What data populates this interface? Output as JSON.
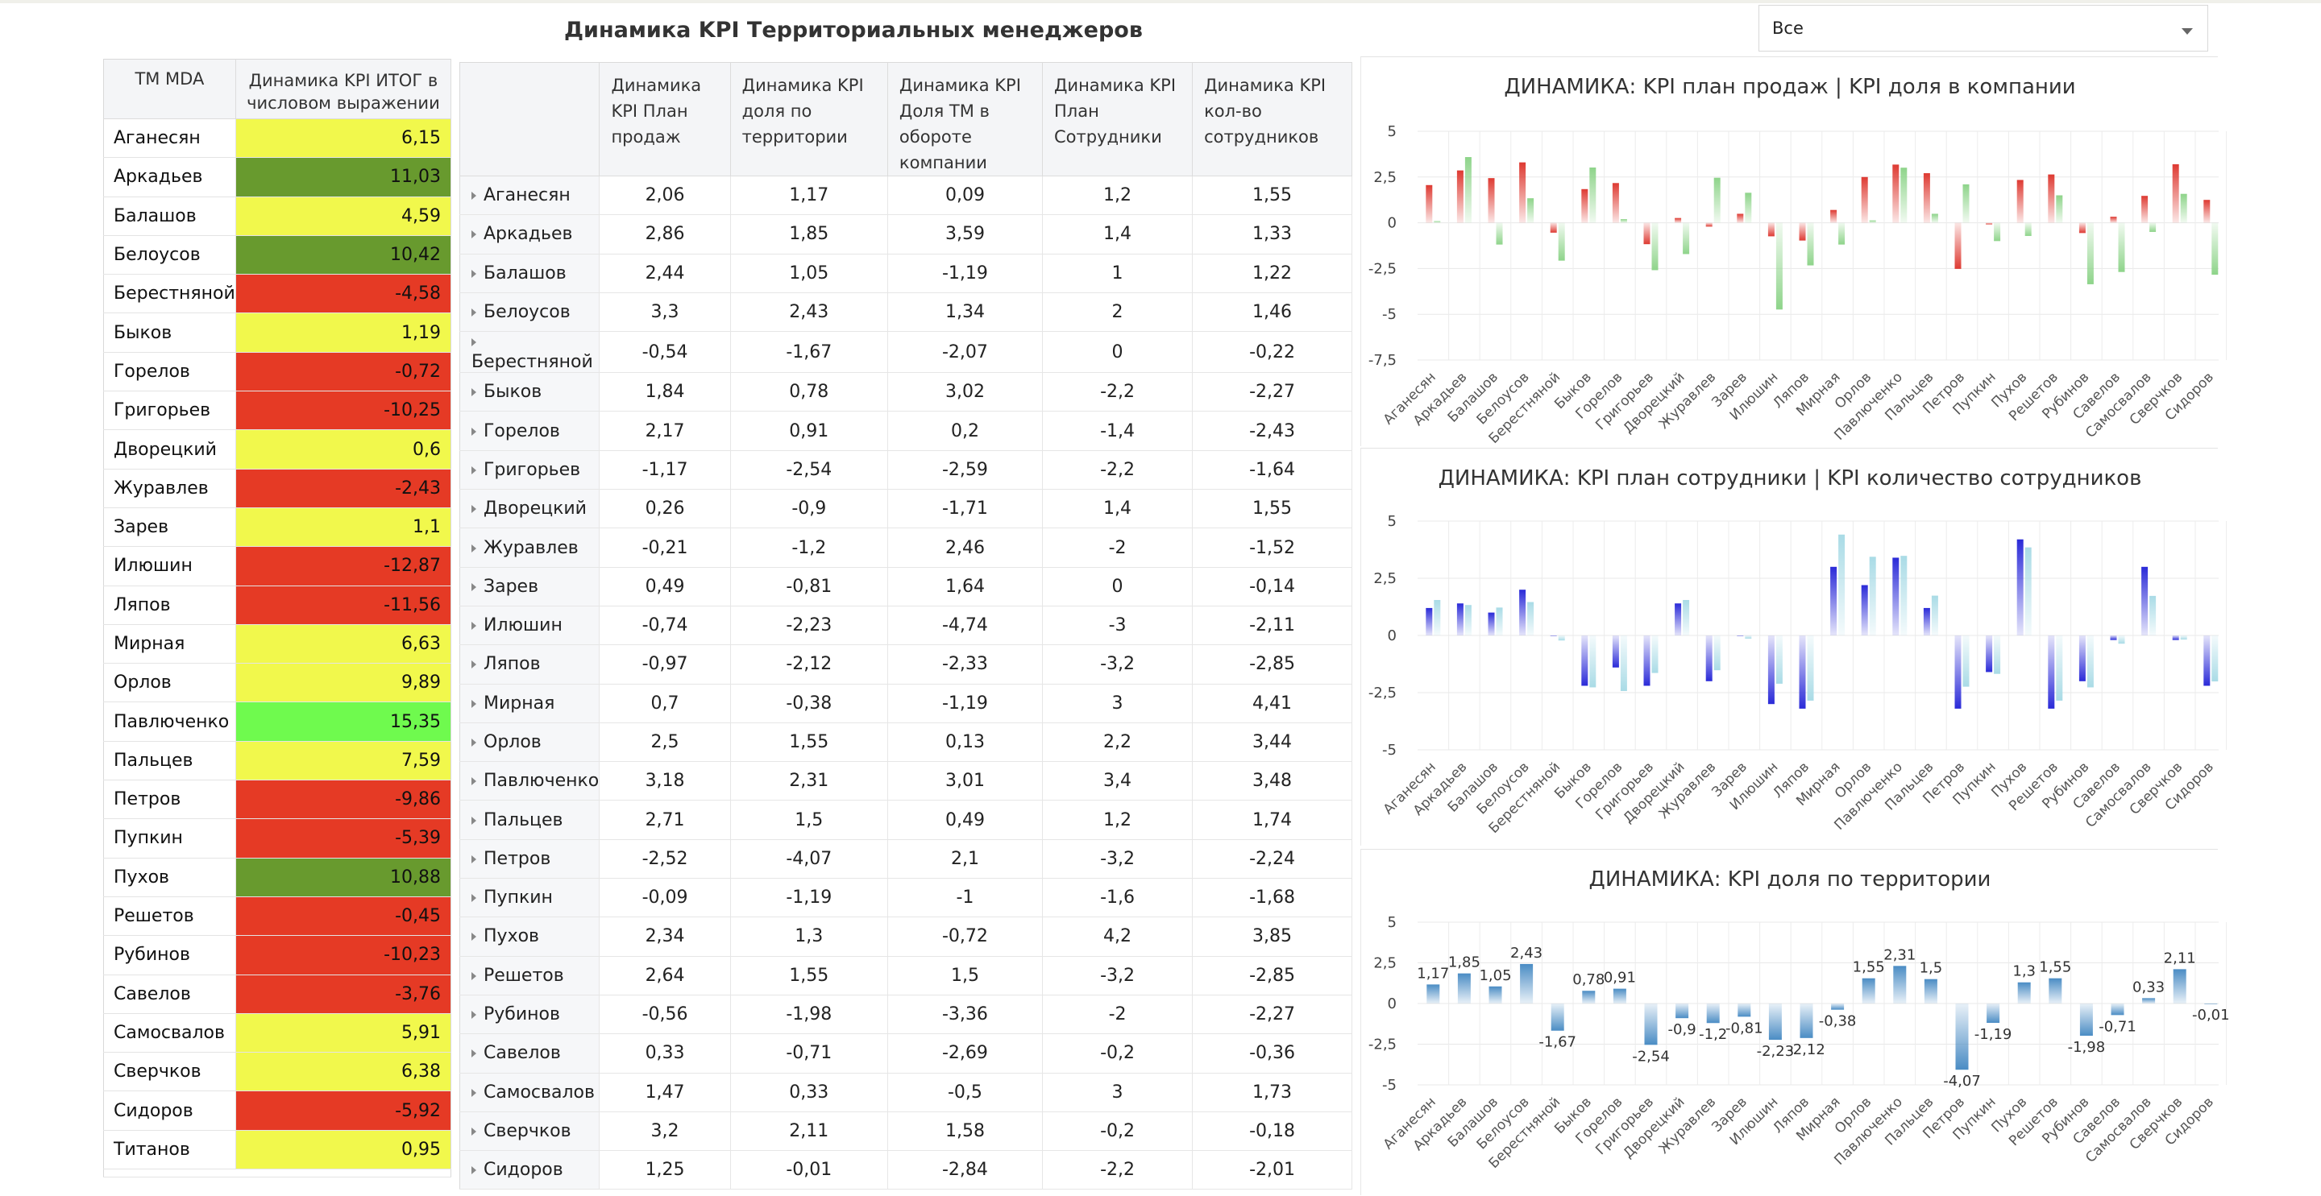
{
  "header": {
    "title": "Динамика KPI  Территориальных менеджеров"
  },
  "filter": {
    "value": "Все"
  },
  "colors": {
    "red": "#e53a25",
    "yellow": "#f1f84c",
    "dark_green": "#689a2e",
    "light_green": "#6ffa4e",
    "red_bar": "#de3a32",
    "green_bar": "#8ed48a",
    "blue_bar": "#2a2ad8",
    "light_blue_bar": "#a9dbe6",
    "steel_bar": "#4a8cc4"
  },
  "left_table": {
    "col_name": "ТМ MDA",
    "col_value": "Динамика KPI ИТОГ в числовом выражении",
    "rows": [
      {
        "name": "Аганесян",
        "value": "6,15",
        "color": "yellow"
      },
      {
        "name": "Аркадьев",
        "value": "11,03",
        "color": "dark_green"
      },
      {
        "name": "Балашов",
        "value": "4,59",
        "color": "yellow"
      },
      {
        "name": "Белоусов",
        "value": "10,42",
        "color": "dark_green"
      },
      {
        "name": "Берестняной",
        "value": "-4,58",
        "color": "red"
      },
      {
        "name": "Быков",
        "value": "1,19",
        "color": "yellow"
      },
      {
        "name": "Горелов",
        "value": "-0,72",
        "color": "red"
      },
      {
        "name": "Григорьев",
        "value": "-10,25",
        "color": "red"
      },
      {
        "name": "Дворецкий",
        "value": "0,6",
        "color": "yellow"
      },
      {
        "name": "Журавлев",
        "value": "-2,43",
        "color": "red"
      },
      {
        "name": "Зарев",
        "value": "1,1",
        "color": "yellow"
      },
      {
        "name": "Илюшин",
        "value": "-12,87",
        "color": "red"
      },
      {
        "name": "Ляпов",
        "value": "-11,56",
        "color": "red"
      },
      {
        "name": "Мирная",
        "value": "6,63",
        "color": "yellow"
      },
      {
        "name": "Орлов",
        "value": "9,89",
        "color": "yellow"
      },
      {
        "name": "Павлюченко",
        "value": "15,35",
        "color": "light_green"
      },
      {
        "name": "Пальцев",
        "value": "7,59",
        "color": "yellow"
      },
      {
        "name": "Петров",
        "value": "-9,86",
        "color": "red"
      },
      {
        "name": "Пупкин",
        "value": "-5,39",
        "color": "red"
      },
      {
        "name": "Пухов",
        "value": "10,88",
        "color": "dark_green"
      },
      {
        "name": "Решетов",
        "value": "-0,45",
        "color": "red"
      },
      {
        "name": "Рубинов",
        "value": "-10,23",
        "color": "red"
      },
      {
        "name": "Савелов",
        "value": "-3,76",
        "color": "red"
      },
      {
        "name": "Самосвалов",
        "value": "5,91",
        "color": "yellow"
      },
      {
        "name": "Сверчков",
        "value": "6,38",
        "color": "yellow"
      },
      {
        "name": "Сидоров",
        "value": "-5,92",
        "color": "red"
      },
      {
        "name": "Титанов",
        "value": "0,95",
        "color": "yellow"
      }
    ]
  },
  "mid_table": {
    "headers": [
      "Динамика KPI План продаж",
      "Динамика KPI доля по территории",
      "Динамика KPI Доля ТМ в обороте компании",
      "Динамика KPI План Сотрудники",
      "Динамика KPI кол-во сотрудников"
    ],
    "rows": [
      {
        "name": "Аганесян",
        "v": [
          "2,06",
          "1,17",
          "0,09",
          "1,2",
          "1,55"
        ]
      },
      {
        "name": "Аркадьев",
        "v": [
          "2,86",
          "1,85",
          "3,59",
          "1,4",
          "1,33"
        ]
      },
      {
        "name": "Балашов",
        "v": [
          "2,44",
          "1,05",
          "-1,19",
          "1",
          "1,22"
        ]
      },
      {
        "name": "Белоусов",
        "v": [
          "3,3",
          "2,43",
          "1,34",
          "2",
          "1,46"
        ]
      },
      {
        "name": "Берестняной",
        "v": [
          "-0,54",
          "-1,67",
          "-2,07",
          "0",
          "-0,22"
        ]
      },
      {
        "name": "Быков",
        "v": [
          "1,84",
          "0,78",
          "3,02",
          "-2,2",
          "-2,27"
        ]
      },
      {
        "name": "Горелов",
        "v": [
          "2,17",
          "0,91",
          "0,2",
          "-1,4",
          "-2,43"
        ]
      },
      {
        "name": "Григорьев",
        "v": [
          "-1,17",
          "-2,54",
          "-2,59",
          "-2,2",
          "-1,64"
        ]
      },
      {
        "name": "Дворецкий",
        "v": [
          "0,26",
          "-0,9",
          "-1,71",
          "1,4",
          "1,55"
        ]
      },
      {
        "name": "Журавлев",
        "v": [
          "-0,21",
          "-1,2",
          "2,46",
          "-2",
          "-1,52"
        ]
      },
      {
        "name": "Зарев",
        "v": [
          "0,49",
          "-0,81",
          "1,64",
          "0",
          "-0,14"
        ]
      },
      {
        "name": "Илюшин",
        "v": [
          "-0,74",
          "-2,23",
          "-4,74",
          "-3",
          "-2,11"
        ]
      },
      {
        "name": "Ляпов",
        "v": [
          "-0,97",
          "-2,12",
          "-2,33",
          "-3,2",
          "-2,85"
        ]
      },
      {
        "name": "Мирная",
        "v": [
          "0,7",
          "-0,38",
          "-1,19",
          "3",
          "4,41"
        ]
      },
      {
        "name": "Орлов",
        "v": [
          "2,5",
          "1,55",
          "0,13",
          "2,2",
          "3,44"
        ]
      },
      {
        "name": "Павлюченко",
        "v": [
          "3,18",
          "2,31",
          "3,01",
          "3,4",
          "3,48"
        ]
      },
      {
        "name": "Пальцев",
        "v": [
          "2,71",
          "1,5",
          "0,49",
          "1,2",
          "1,74"
        ]
      },
      {
        "name": "Петров",
        "v": [
          "-2,52",
          "-4,07",
          "2,1",
          "-3,2",
          "-2,24"
        ]
      },
      {
        "name": "Пупкин",
        "v": [
          "-0,09",
          "-1,19",
          "-1",
          "-1,6",
          "-1,68"
        ]
      },
      {
        "name": "Пухов",
        "v": [
          "2,34",
          "1,3",
          "-0,72",
          "4,2",
          "3,85"
        ]
      },
      {
        "name": "Решетов",
        "v": [
          "2,64",
          "1,55",
          "1,5",
          "-3,2",
          "-2,85"
        ]
      },
      {
        "name": "Рубинов",
        "v": [
          "-0,56",
          "-1,98",
          "-3,36",
          "-2",
          "-2,27"
        ]
      },
      {
        "name": "Савелов",
        "v": [
          "0,33",
          "-0,71",
          "-2,69",
          "-0,2",
          "-0,36"
        ]
      },
      {
        "name": "Самосвалов",
        "v": [
          "1,47",
          "0,33",
          "-0,5",
          "3",
          "1,73"
        ]
      },
      {
        "name": "Сверчков",
        "v": [
          "3,2",
          "2,11",
          "1,58",
          "-0,2",
          "-0,18"
        ]
      },
      {
        "name": "Сидоров",
        "v": [
          "1,25",
          "-0,01",
          "-2,84",
          "-2,2",
          "-2,01"
        ]
      }
    ]
  },
  "chart_data": [
    {
      "type": "bar",
      "title": "ДИНАМИКА: KPI план продаж | KPI доля в компании",
      "categories": [
        "Аганесян",
        "Аркадьев",
        "Балашов",
        "Белоусов",
        "Берестняной",
        "Быков",
        "Горелов",
        "Григорьев",
        "Дворецкий",
        "Журавлев",
        "Зарев",
        "Илюшин",
        "Ляпов",
        "Мирная",
        "Орлов",
        "Павлюченко",
        "Пальцев",
        "Петров",
        "Пупкин",
        "Пухов",
        "Решетов",
        "Рубинов",
        "Савелов",
        "Самосвалов",
        "Сверчков",
        "Сидоров"
      ],
      "series": [
        {
          "values": [
            2.06,
            2.86,
            2.44,
            3.3,
            -0.54,
            1.84,
            2.17,
            -1.17,
            0.26,
            -0.21,
            0.49,
            -0.74,
            -0.97,
            0.7,
            2.5,
            3.18,
            2.71,
            -2.52,
            -0.09,
            2.34,
            2.64,
            -0.56,
            0.33,
            1.47,
            3.2,
            1.25
          ],
          "color": "#de3a32"
        },
        {
          "values": [
            0.09,
            3.59,
            -1.19,
            1.34,
            -2.07,
            3.02,
            0.2,
            -2.59,
            -1.71,
            2.46,
            1.64,
            -4.74,
            -2.33,
            -1.19,
            0.13,
            3.01,
            0.49,
            2.1,
            -1,
            -0.72,
            1.5,
            -3.36,
            -2.69,
            -0.5,
            1.58,
            -2.84
          ],
          "color": "#8ed48a"
        }
      ],
      "yticks": [
        "5",
        "2,5",
        "0",
        "-2,5",
        "-5",
        "-7,5"
      ],
      "ylim": [
        -7.5,
        5
      ],
      "grid": true,
      "labels": false
    },
    {
      "type": "bar",
      "title": "ДИНАМИКА: KPI план сотрудники | KPI количество сотрудников",
      "categories": [
        "Аганесян",
        "Аркадьев",
        "Балашов",
        "Белоусов",
        "Берестняной",
        "Быков",
        "Горелов",
        "Григорьев",
        "Дворецкий",
        "Журавлев",
        "Зарев",
        "Илюшин",
        "Ляпов",
        "Мирная",
        "Орлов",
        "Павлюченко",
        "Пальцев",
        "Петров",
        "Пупкин",
        "Пухов",
        "Решетов",
        "Рубинов",
        "Савелов",
        "Самосвалов",
        "Сверчков",
        "Сидоров"
      ],
      "series": [
        {
          "values": [
            1.2,
            1.4,
            1,
            2,
            0,
            -2.2,
            -1.4,
            -2.2,
            1.4,
            -2,
            0,
            -3,
            -3.2,
            3,
            2.2,
            3.4,
            1.2,
            -3.2,
            -1.6,
            4.2,
            -3.2,
            -2,
            -0.2,
            3,
            -0.2,
            -2.2
          ],
          "color": "#2a2ad8"
        },
        {
          "values": [
            1.55,
            1.33,
            1.22,
            1.46,
            -0.22,
            -2.27,
            -2.43,
            -1.64,
            1.55,
            -1.52,
            -0.14,
            -2.11,
            -2.85,
            4.41,
            3.44,
            3.48,
            1.74,
            -2.24,
            -1.68,
            3.85,
            -2.85,
            -2.27,
            -0.36,
            1.73,
            -0.18,
            -2.01
          ],
          "color": "#a9dbe6"
        }
      ],
      "yticks": [
        "5",
        "2,5",
        "0",
        "-2,5",
        "-5"
      ],
      "ylim": [
        -5,
        5
      ],
      "grid": true,
      "labels": false
    },
    {
      "type": "bar",
      "title": "ДИНАМИКА: KPI доля по территории",
      "categories": [
        "Аганесян",
        "Аркадьев",
        "Балашов",
        "Белоусов",
        "Берестняной",
        "Быков",
        "Горелов",
        "Григорьев",
        "Дворецкий",
        "Журавлев",
        "Зарев",
        "Илюшин",
        "Ляпов",
        "Мирная",
        "Орлов",
        "Павлюченко",
        "Пальцев",
        "Петров",
        "Пупкин",
        "Пухов",
        "Решетов",
        "Рубинов",
        "Савелов",
        "Самосвалов",
        "Сверчков",
        "Сидоров"
      ],
      "series": [
        {
          "values": [
            1.17,
            1.85,
            1.05,
            2.43,
            -1.67,
            0.78,
            0.91,
            -2.54,
            -0.9,
            -1.2,
            -0.81,
            -2.23,
            -2.12,
            -0.38,
            1.55,
            2.31,
            1.5,
            -4.07,
            -1.19,
            1.3,
            1.55,
            -1.98,
            -0.71,
            0.33,
            2.11,
            -0.01
          ],
          "color": "#4a8cc4"
        }
      ],
      "data_labels": [
        "1,17",
        "1,85",
        "1,05",
        "2,43",
        "-1,67",
        "0,78",
        "0,91",
        "-2,54",
        "-0,9",
        "-1,2",
        "-0,81",
        "-2,23",
        "-2,12",
        "-0,38",
        "1,55",
        "2,31",
        "1,5",
        "-4,07",
        "-1,19",
        "1,3",
        "1,55",
        "-1,98",
        "-0,71",
        "0,33",
        "2,11",
        "-0,01"
      ],
      "yticks": [
        "5",
        "2,5",
        "0",
        "-2,5",
        "-5"
      ],
      "ylim": [
        -5,
        5
      ],
      "grid": true,
      "labels": true
    }
  ]
}
